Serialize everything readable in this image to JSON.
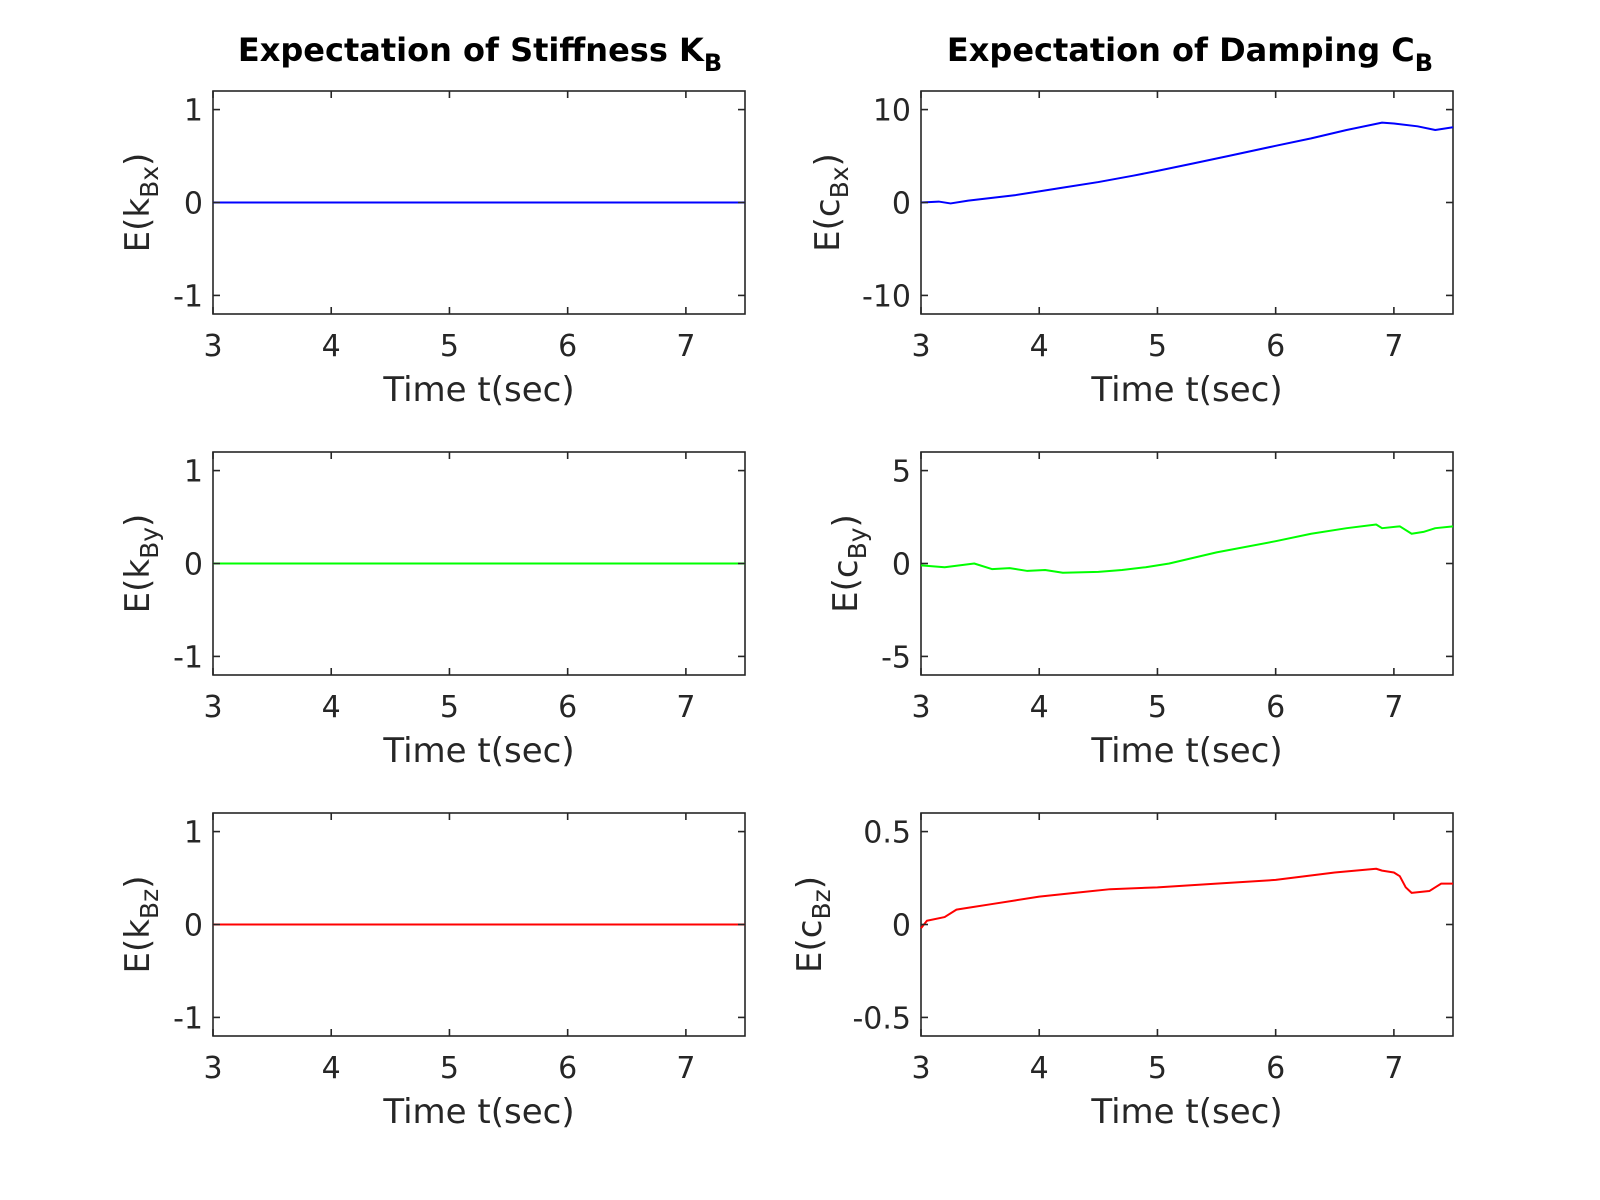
{
  "column_titles": [
    {
      "main": "Expectation of Stiffness K",
      "sub": "B"
    },
    {
      "main": "Expectation of Damping C",
      "sub": "B"
    }
  ],
  "chart_data": [
    {
      "type": "line",
      "title": "",
      "xlabel": "Time t(sec)",
      "ylabel": {
        "pre": "E(k",
        "sub": "Bx",
        "post": ")"
      },
      "xlim": [
        3,
        7.5
      ],
      "ylim": [
        -1.2,
        1.2
      ],
      "xticks": [
        3,
        4,
        5,
        6,
        7
      ],
      "xtick_labels": [
        "3",
        "4",
        "5",
        "6",
        "7"
      ],
      "yticks": [
        -1,
        0,
        1
      ],
      "ytick_labels": [
        "-1",
        "0",
        "1"
      ],
      "grid": false,
      "series": [
        {
          "color": "#0000ff",
          "x": [
            3,
            7.5
          ],
          "y": [
            0,
            0
          ]
        }
      ]
    },
    {
      "type": "line",
      "title": "",
      "xlabel": "Time t(sec)",
      "ylabel": {
        "pre": "E(c",
        "sub": "Bx",
        "post": ")"
      },
      "xlim": [
        3,
        7.5
      ],
      "ylim": [
        -12,
        12
      ],
      "xticks": [
        3,
        4,
        5,
        6,
        7
      ],
      "xtick_labels": [
        "3",
        "4",
        "5",
        "6",
        "7"
      ],
      "yticks": [
        -10,
        0,
        10
      ],
      "ytick_labels": [
        "-10",
        "0",
        "10"
      ],
      "grid": false,
      "series": [
        {
          "color": "#0000ff",
          "x": [
            3.0,
            3.15,
            3.25,
            3.4,
            3.6,
            3.8,
            4.0,
            4.2,
            4.5,
            4.8,
            5.0,
            5.3,
            5.6,
            6.0,
            6.3,
            6.6,
            6.9,
            7.0,
            7.2,
            7.35,
            7.5
          ],
          "y": [
            0.0,
            0.1,
            -0.1,
            0.2,
            0.5,
            0.8,
            1.2,
            1.6,
            2.2,
            2.9,
            3.4,
            4.2,
            5.0,
            6.1,
            6.9,
            7.8,
            8.6,
            8.5,
            8.2,
            7.8,
            8.1
          ]
        }
      ]
    },
    {
      "type": "line",
      "title": "",
      "xlabel": "Time t(sec)",
      "ylabel": {
        "pre": "E(k",
        "sub": "By",
        "post": ")"
      },
      "xlim": [
        3,
        7.5
      ],
      "ylim": [
        -1.2,
        1.2
      ],
      "xticks": [
        3,
        4,
        5,
        6,
        7
      ],
      "xtick_labels": [
        "3",
        "4",
        "5",
        "6",
        "7"
      ],
      "yticks": [
        -1,
        0,
        1
      ],
      "ytick_labels": [
        "-1",
        "0",
        "1"
      ],
      "grid": false,
      "series": [
        {
          "color": "#00ff00",
          "x": [
            3,
            7.5
          ],
          "y": [
            0,
            0
          ]
        }
      ]
    },
    {
      "type": "line",
      "title": "",
      "xlabel": "Time t(sec)",
      "ylabel": {
        "pre": "E(c",
        "sub": "By",
        "post": ")"
      },
      "xlim": [
        3,
        7.5
      ],
      "ylim": [
        -6,
        6
      ],
      "xticks": [
        3,
        4,
        5,
        6,
        7
      ],
      "xtick_labels": [
        "3",
        "4",
        "5",
        "6",
        "7"
      ],
      "yticks": [
        -5,
        0,
        5
      ],
      "ytick_labels": [
        "-5",
        "0",
        "5"
      ],
      "grid": false,
      "series": [
        {
          "color": "#00ff00",
          "x": [
            3.0,
            3.2,
            3.45,
            3.6,
            3.75,
            3.9,
            4.05,
            4.2,
            4.5,
            4.7,
            4.9,
            5.1,
            5.5,
            6.0,
            6.3,
            6.6,
            6.85,
            6.9,
            7.05,
            7.15,
            7.25,
            7.35,
            7.5
          ],
          "y": [
            -0.1,
            -0.2,
            0.0,
            -0.3,
            -0.25,
            -0.4,
            -0.35,
            -0.5,
            -0.45,
            -0.35,
            -0.2,
            0.0,
            0.6,
            1.2,
            1.6,
            1.9,
            2.1,
            1.9,
            2.0,
            1.6,
            1.7,
            1.9,
            2.0
          ]
        }
      ]
    },
    {
      "type": "line",
      "title": "",
      "xlabel": "Time t(sec)",
      "ylabel": {
        "pre": "E(k",
        "sub": "Bz",
        "post": ")"
      },
      "xlim": [
        3,
        7.5
      ],
      "ylim": [
        -1.2,
        1.2
      ],
      "xticks": [
        3,
        4,
        5,
        6,
        7
      ],
      "xtick_labels": [
        "3",
        "4",
        "5",
        "6",
        "7"
      ],
      "yticks": [
        -1,
        0,
        1
      ],
      "ytick_labels": [
        "-1",
        "0",
        "1"
      ],
      "grid": false,
      "series": [
        {
          "color": "#ff0000",
          "x": [
            3,
            7.5
          ],
          "y": [
            0,
            0
          ]
        }
      ]
    },
    {
      "type": "line",
      "title": "",
      "xlabel": "Time t(sec)",
      "ylabel": {
        "pre": "E(c",
        "sub": "Bz",
        "post": ")"
      },
      "xlim": [
        3,
        7.5
      ],
      "ylim": [
        -0.6,
        0.6
      ],
      "xticks": [
        3,
        4,
        5,
        6,
        7
      ],
      "xtick_labels": [
        "3",
        "4",
        "5",
        "6",
        "7"
      ],
      "yticks": [
        -0.5,
        0,
        0.5
      ],
      "ytick_labels": [
        "-0.5",
        "0",
        "0.5"
      ],
      "grid": false,
      "series": [
        {
          "color": "#ff0000",
          "x": [
            3.0,
            3.05,
            3.2,
            3.3,
            3.4,
            3.6,
            3.8,
            4.0,
            4.3,
            4.6,
            5.0,
            5.5,
            6.0,
            6.5,
            6.85,
            6.9,
            7.0,
            7.05,
            7.1,
            7.15,
            7.3,
            7.35,
            7.4,
            7.5
          ],
          "y": [
            -0.02,
            0.02,
            0.04,
            0.08,
            0.09,
            0.11,
            0.13,
            0.15,
            0.17,
            0.19,
            0.2,
            0.22,
            0.24,
            0.28,
            0.3,
            0.29,
            0.28,
            0.26,
            0.2,
            0.17,
            0.18,
            0.2,
            0.22,
            0.22
          ]
        }
      ]
    }
  ]
}
